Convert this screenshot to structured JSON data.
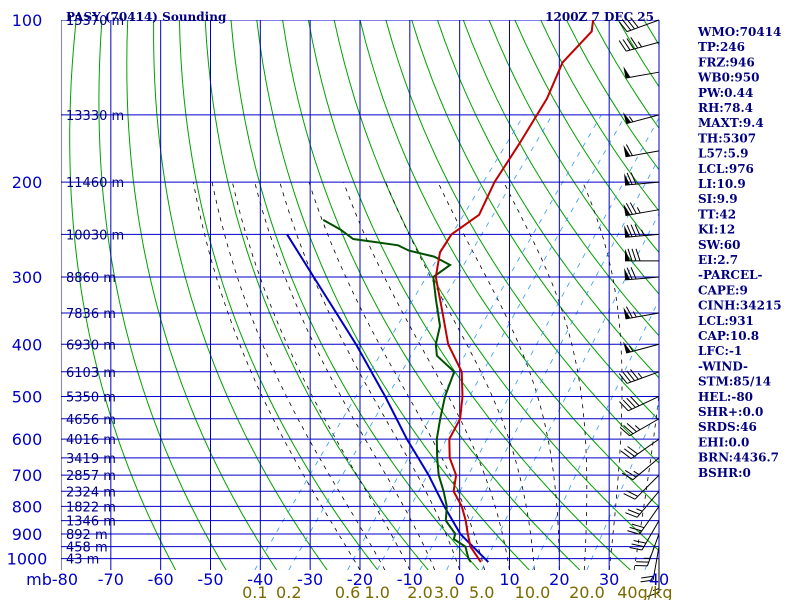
{
  "header": {
    "station": "PASY (70414) Sounding",
    "time": "1200Z  7 DEC 25"
  },
  "colors": {
    "grid": "#0000c8",
    "dry_adiabat": "#00a000",
    "moist_adiabat": "#000000",
    "mixing_ratio": "#3399ff",
    "temperature": "#c00000",
    "dewpoint": "#005000",
    "parcel": "#0000c0"
  },
  "chart_data": {
    "type": "skew-t",
    "title": "PASY (70414) Sounding 1200Z 7 DEC 25",
    "pressure_unit": "mb",
    "pressure_levels": [
      100,
      200,
      300,
      400,
      500,
      600,
      700,
      800,
      900,
      1000
    ],
    "temperature_ticks": [
      -80,
      -70,
      -60,
      -50,
      -40,
      -30,
      -20,
      -10,
      0,
      10,
      20,
      30,
      40
    ],
    "temperature_tick_labels": [
      "mb-80",
      "-70",
      "-60",
      "-50",
      "-40",
      "-30",
      "-20",
      "-10",
      "0",
      "10",
      "20",
      "30",
      "40"
    ],
    "p_range": [
      100,
      1050
    ],
    "t_range_at_1050mb": [
      -80,
      40
    ],
    "skew_deg_per_decade": 84,
    "height_labels": [
      {
        "p": 100,
        "label": "15370 m"
      },
      {
        "p": 150,
        "label": "13330 m"
      },
      {
        "p": 200,
        "label": "11460 m"
      },
      {
        "p": 250,
        "label": "10030 m"
      },
      {
        "p": 300,
        "label": "8860 m"
      },
      {
        "p": 350,
        "label": "7836 m"
      },
      {
        "p": 400,
        "label": "6930 m"
      },
      {
        "p": 450,
        "label": "6103 m"
      },
      {
        "p": 500,
        "label": "5350 m"
      },
      {
        "p": 550,
        "label": "4656 m"
      },
      {
        "p": 600,
        "label": "4016 m"
      },
      {
        "p": 650,
        "label": "3419 m"
      },
      {
        "p": 700,
        "label": "2857 m"
      },
      {
        "p": 750,
        "label": "2324 m"
      },
      {
        "p": 800,
        "label": "1822 m"
      },
      {
        "p": 850,
        "label": "1346 m"
      },
      {
        "p": 900,
        "label": "892 m"
      },
      {
        "p": 950,
        "label": "458 m"
      },
      {
        "p": 1000,
        "label": "43 m"
      }
    ],
    "mixing_ratio_labels": [
      "0.1",
      "0.2",
      "0.6",
      "1.0",
      "2.0",
      "3.0",
      "5.0",
      "10.0",
      "20.0",
      "40g/kg"
    ],
    "mixing_ratio_values": [
      0.1,
      0.2,
      0.6,
      1.0,
      2.0,
      3.0,
      5.0,
      10.0,
      20.0,
      40.0
    ],
    "temperature_profile": [
      {
        "p": 1015,
        "t": 3.0
      },
      {
        "p": 1000,
        "t": 2.0
      },
      {
        "p": 950,
        "t": -1.5
      },
      {
        "p": 900,
        "t": -4.0
      },
      {
        "p": 850,
        "t": -6.5
      },
      {
        "p": 800,
        "t": -9.5
      },
      {
        "p": 750,
        "t": -13.5
      },
      {
        "p": 700,
        "t": -15.5
      },
      {
        "p": 650,
        "t": -19.5
      },
      {
        "p": 600,
        "t": -22.5
      },
      {
        "p": 550,
        "t": -23.5
      },
      {
        "p": 500,
        "t": -26.5
      },
      {
        "p": 450,
        "t": -30.5
      },
      {
        "p": 400,
        "t": -37.5
      },
      {
        "p": 350,
        "t": -43.5
      },
      {
        "p": 300,
        "t": -50.5
      },
      {
        "p": 270,
        "t": -53.5
      },
      {
        "p": 250,
        "t": -54.0
      },
      {
        "p": 230,
        "t": -51.5
      },
      {
        "p": 200,
        "t": -53.5
      },
      {
        "p": 170,
        "t": -54.5
      },
      {
        "p": 140,
        "t": -56.0
      },
      {
        "p": 120,
        "t": -58.5
      },
      {
        "p": 105,
        "t": -57.5
      },
      {
        "p": 100,
        "t": -59.0
      }
    ],
    "dewpoint_profile": [
      {
        "p": 1015,
        "t": 1.0
      },
      {
        "p": 1000,
        "t": 0.0
      },
      {
        "p": 950,
        "t": -2.5
      },
      {
        "p": 920,
        "t": -6.0
      },
      {
        "p": 900,
        "t": -6.5
      },
      {
        "p": 850,
        "t": -10.5
      },
      {
        "p": 800,
        "t": -12.5
      },
      {
        "p": 750,
        "t": -15.5
      },
      {
        "p": 700,
        "t": -19.0
      },
      {
        "p": 650,
        "t": -22.0
      },
      {
        "p": 600,
        "t": -25.0
      },
      {
        "p": 550,
        "t": -27.5
      },
      {
        "p": 500,
        "t": -30.0
      },
      {
        "p": 450,
        "t": -32.0
      },
      {
        "p": 420,
        "t": -38.0
      },
      {
        "p": 400,
        "t": -40.0
      },
      {
        "p": 370,
        "t": -42.0
      },
      {
        "p": 330,
        "t": -47.0
      },
      {
        "p": 300,
        "t": -51.0
      },
      {
        "p": 285,
        "t": -49.5
      },
      {
        "p": 275,
        "t": -54.0
      },
      {
        "p": 268,
        "t": -60.0
      },
      {
        "p": 262,
        "t": -63.0
      },
      {
        "p": 255,
        "t": -73.0
      },
      {
        "p": 245,
        "t": -77.0
      },
      {
        "p": 235,
        "t": -82.0
      }
    ],
    "parcel_path": [
      {
        "p": 1015,
        "t": 4.5
      },
      {
        "p": 950,
        "t": -1.0
      },
      {
        "p": 900,
        "t": -5.5
      },
      {
        "p": 800,
        "t": -13.0
      },
      {
        "p": 700,
        "t": -21.0
      },
      {
        "p": 600,
        "t": -31.0
      },
      {
        "p": 500,
        "t": -42.0
      },
      {
        "p": 400,
        "t": -56.0
      },
      {
        "p": 300,
        "t": -75.0
      },
      {
        "p": 250,
        "t": -87.0
      }
    ],
    "wind_barbs": [
      {
        "p": 100,
        "dir": 250,
        "spd": 40
      },
      {
        "p": 110,
        "dir": 255,
        "spd": 45
      },
      {
        "p": 125,
        "dir": 260,
        "spd": 50
      },
      {
        "p": 150,
        "dir": 255,
        "spd": 55
      },
      {
        "p": 175,
        "dir": 260,
        "spd": 60
      },
      {
        "p": 200,
        "dir": 265,
        "spd": 70
      },
      {
        "p": 225,
        "dir": 260,
        "spd": 75
      },
      {
        "p": 250,
        "dir": 265,
        "spd": 85
      },
      {
        "p": 280,
        "dir": 270,
        "spd": 80
      },
      {
        "p": 300,
        "dir": 265,
        "spd": 70
      },
      {
        "p": 350,
        "dir": 260,
        "spd": 65
      },
      {
        "p": 400,
        "dir": 255,
        "spd": 55
      },
      {
        "p": 450,
        "dir": 250,
        "spd": 45
      },
      {
        "p": 500,
        "dir": 245,
        "spd": 40
      },
      {
        "p": 550,
        "dir": 240,
        "spd": 35
      },
      {
        "p": 600,
        "dir": 235,
        "spd": 30
      },
      {
        "p": 650,
        "dir": 230,
        "spd": 25
      },
      {
        "p": 700,
        "dir": 225,
        "spd": 20
      },
      {
        "p": 750,
        "dir": 220,
        "spd": 25
      },
      {
        "p": 800,
        "dir": 215,
        "spd": 30
      },
      {
        "p": 850,
        "dir": 210,
        "spd": 30
      },
      {
        "p": 900,
        "dir": 200,
        "spd": 25
      },
      {
        "p": 950,
        "dir": 190,
        "spd": 20
      },
      {
        "p": 1000,
        "dir": 180,
        "spd": 15
      }
    ]
  },
  "indices": [
    "WMO:70414",
    "TP:246",
    "FRZ:946",
    "WB0:950",
    "PW:0.44",
    "RH:78.4",
    "MAXT:9.4",
    "TH:5307",
    "L57:5.9",
    "LCL:976",
    "LI:10.9",
    "SI:9.9",
    "TT:42",
    "KI:12",
    "SW:60",
    "EI:2.7",
    "-PARCEL-",
    "CAPE:9",
    "CINH:34215",
    "LCL:931",
    "CAP:10.8",
    "LFC:-1",
    "-WIND-",
    "STM:85/14",
    "HEL:-80",
    "SHR+:0.0",
    "SRDS:46",
    "EHI:0.0",
    "BRN:4436.7",
    "BSHR:0"
  ]
}
